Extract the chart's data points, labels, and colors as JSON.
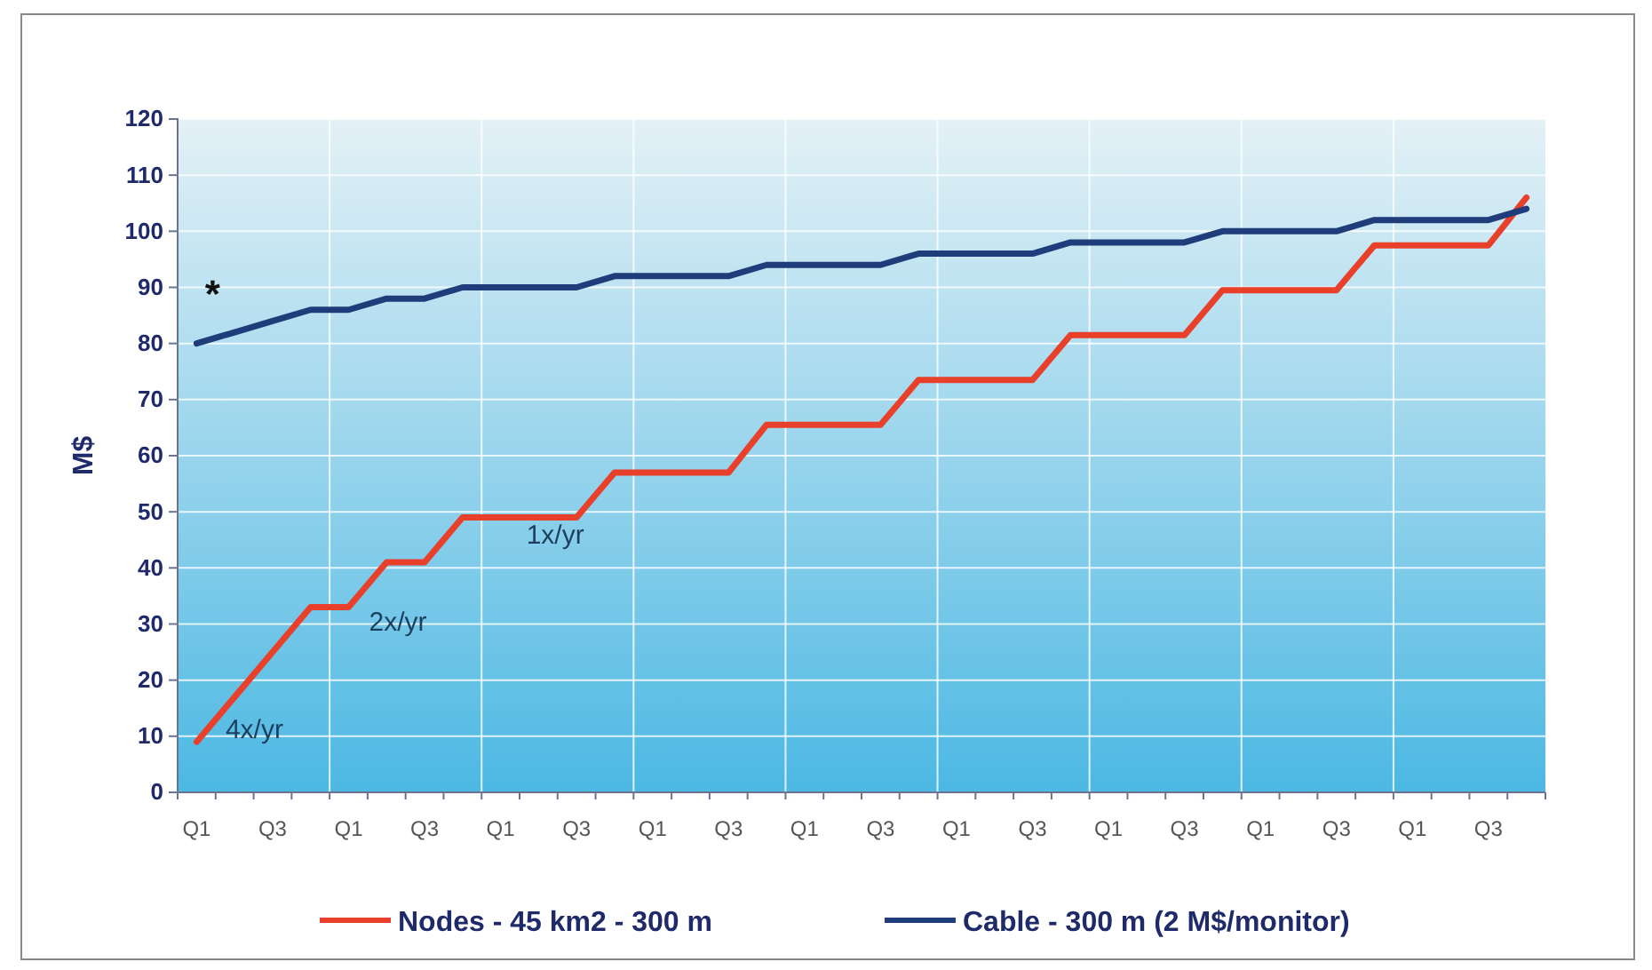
{
  "chart_data": {
    "type": "line",
    "ylabel": "M$",
    "categories": [
      "Q1",
      null,
      "Q3",
      null,
      "Q1",
      null,
      "Q3",
      null,
      "Q1",
      null,
      "Q3",
      null,
      "Q1",
      null,
      "Q3",
      null,
      "Q1",
      null,
      "Q3",
      null,
      "Q1",
      null,
      "Q3",
      null,
      "Q1",
      null,
      "Q3",
      null,
      "Q1",
      null,
      "Q3",
      null,
      "Q1",
      null,
      "Q3",
      null
    ],
    "series": [
      {
        "name": "Nodes - 45 km2 - 300 m",
        "color": "#e8402a",
        "values": [
          9,
          17,
          25,
          33,
          33,
          41,
          41,
          49,
          49,
          49,
          49,
          57,
          57,
          57,
          57,
          65.5,
          65.5,
          65.5,
          65.5,
          73.5,
          73.5,
          73.5,
          73.5,
          81.5,
          81.5,
          81.5,
          81.5,
          89.5,
          89.5,
          89.5,
          89.5,
          97.5,
          97.5,
          97.5,
          97.5,
          106
        ]
      },
      {
        "name": "Cable - 300 m (2 M$/monitor)",
        "color": "#1f3d7a",
        "values": [
          80,
          82,
          84,
          86,
          86,
          88,
          88,
          90,
          90,
          90,
          90,
          92,
          92,
          92,
          92,
          94,
          94,
          94,
          94,
          96,
          96,
          96,
          96,
          98,
          98,
          98,
          98,
          100,
          100,
          100,
          100,
          102,
          102,
          102,
          102,
          104
        ]
      }
    ],
    "ylim": [
      0,
      120
    ],
    "yticks": [
      0,
      10,
      20,
      30,
      40,
      50,
      60,
      70,
      80,
      90,
      100,
      110,
      120
    ],
    "grid": true,
    "legend": "bottom",
    "marker": "none",
    "line_style": "solid",
    "annotations": [
      "*",
      "4x/yr",
      "2x/yr",
      "1x/yr"
    ]
  }
}
